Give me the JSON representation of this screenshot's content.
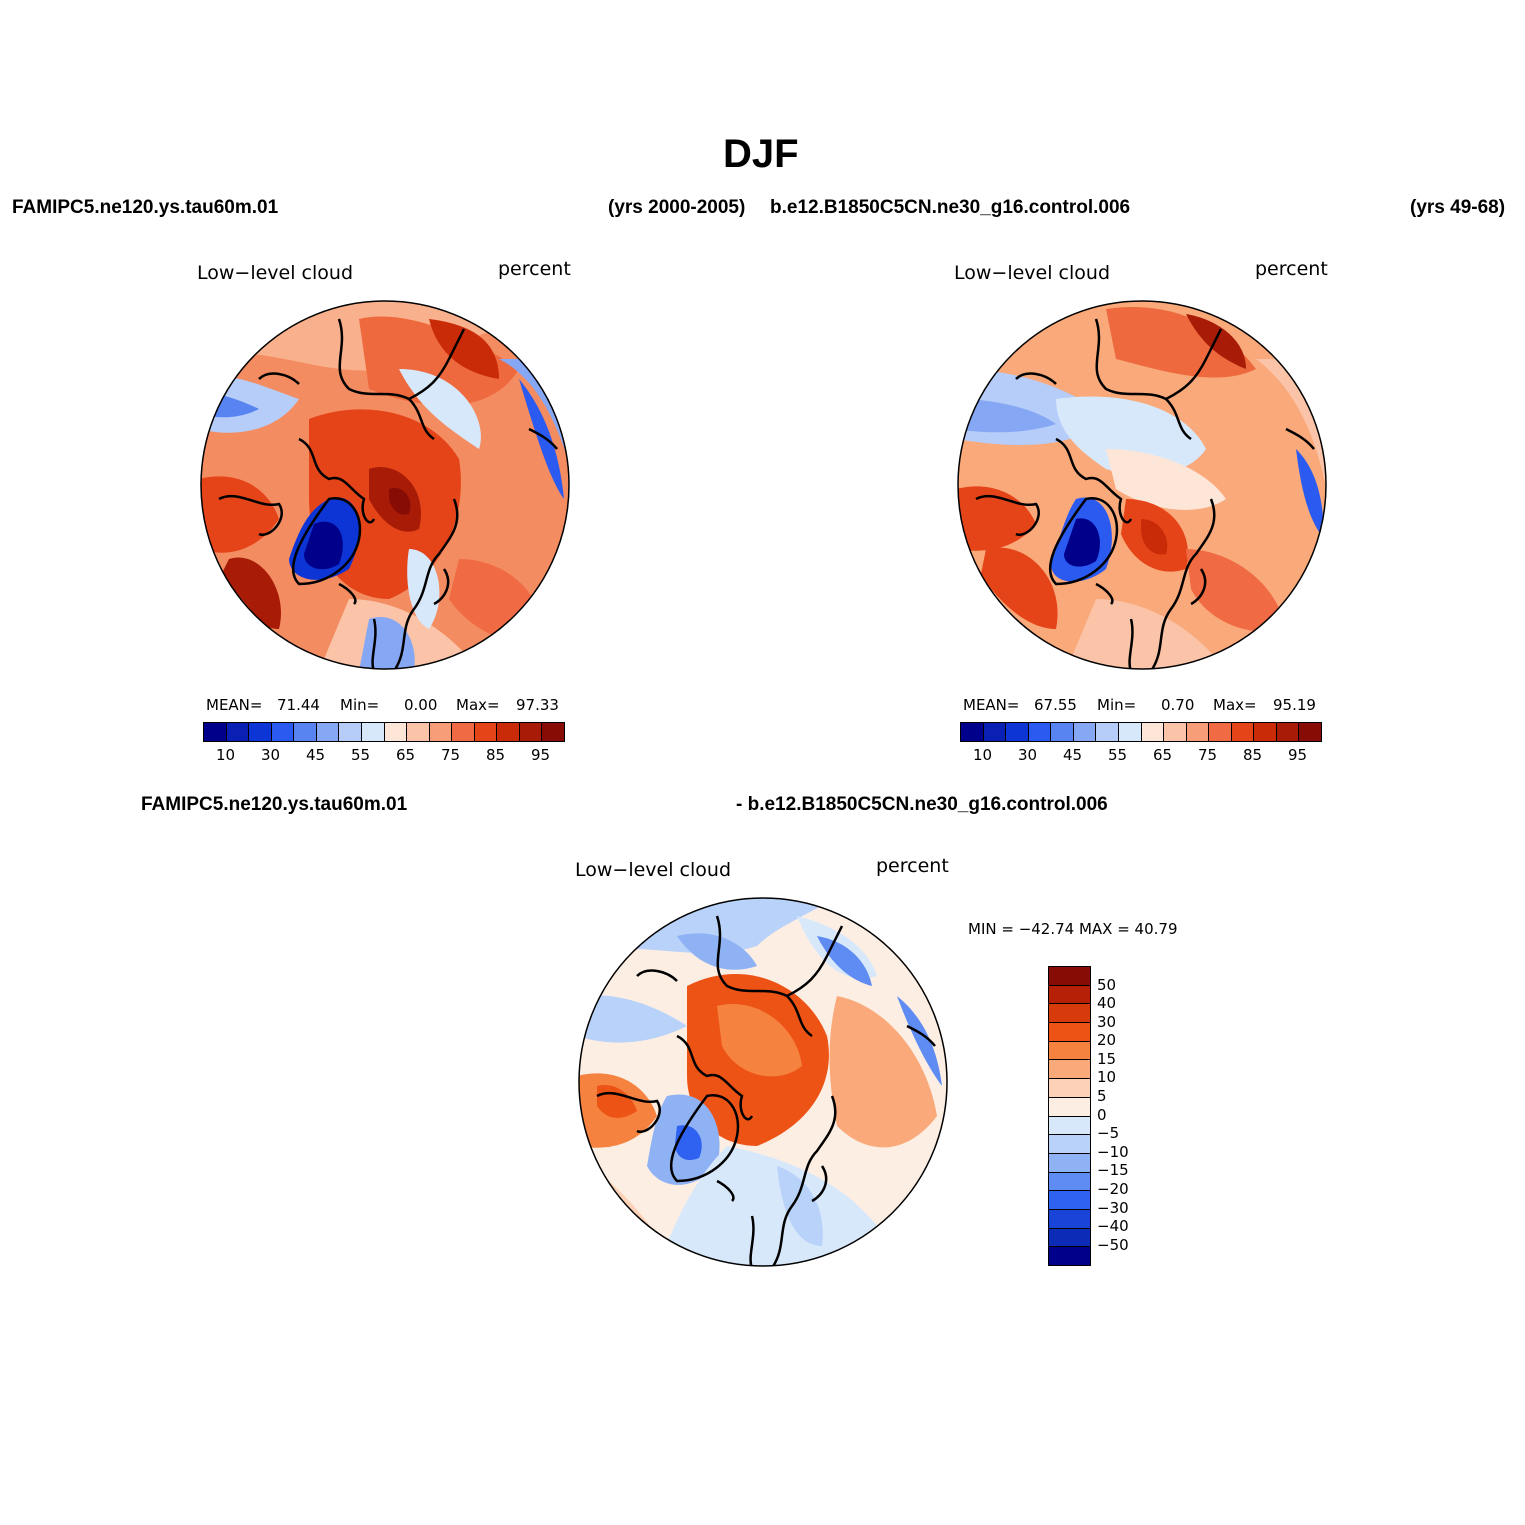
{
  "figure": {
    "title": "DJF",
    "case_left": "FAMIPC5.ne120.ys.tau60m.01",
    "years_left": "(yrs 2000-2005)",
    "case_right": "b.e12.B1850C5CN.ne30_g16.control.006",
    "years_right": "(yrs 49-68)",
    "diff_left": "FAMIPC5.ne120.ys.tau60m.01",
    "diff_right": "- b.e12.B1850C5CN.ne30_g16.control.006"
  },
  "panels": [
    {
      "variable": "Low−level cloud",
      "units": "percent",
      "mean_label": "MEAN=",
      "mean_value": "71.44",
      "min_label": "Min=",
      "min_value": "0.00",
      "max_label": "Max=",
      "max_value": "97.33"
    },
    {
      "variable": "Low−level cloud",
      "units": "percent",
      "mean_label": "MEAN=",
      "mean_value": "67.55",
      "min_label": "Min=",
      "min_value": "0.70",
      "max_label": "Max=",
      "max_value": "95.19"
    },
    {
      "variable": "Low−level cloud",
      "units": "percent",
      "minmax_text": "MIN = −42.74 MAX =   40.79"
    }
  ],
  "colorbar_abs": {
    "colors": [
      "#00008b",
      "#0a1fb4",
      "#0d35d6",
      "#2a5af0",
      "#5884f2",
      "#86a8f4",
      "#b5cdf8",
      "#d8e8fb",
      "#fde6d8",
      "#fbc4a8",
      "#f79d78",
      "#f06b43",
      "#e54418",
      "#c92b08",
      "#a81b06",
      "#870c05"
    ],
    "tick_labels": [
      "10",
      "30",
      "45",
      "55",
      "65",
      "75",
      "85",
      "95"
    ]
  },
  "colorbar_diff": {
    "colors_top_to_bottom": [
      "#870c05",
      "#b52006",
      "#d83b0b",
      "#ee5316",
      "#f5823f",
      "#f9a97a",
      "#fcd1b7",
      "#fdeee3",
      "#d8e8fb",
      "#b8d2f9",
      "#8fb2f5",
      "#5f8cf2",
      "#2f62f0",
      "#1a44d8",
      "#0c2cb8",
      "#00008b"
    ],
    "tick_labels": [
      "50",
      "40",
      "30",
      "20",
      "15",
      "10",
      "5",
      "0",
      "−5",
      "−10",
      "−15",
      "−20",
      "−30",
      "−40",
      "−50"
    ]
  }
}
